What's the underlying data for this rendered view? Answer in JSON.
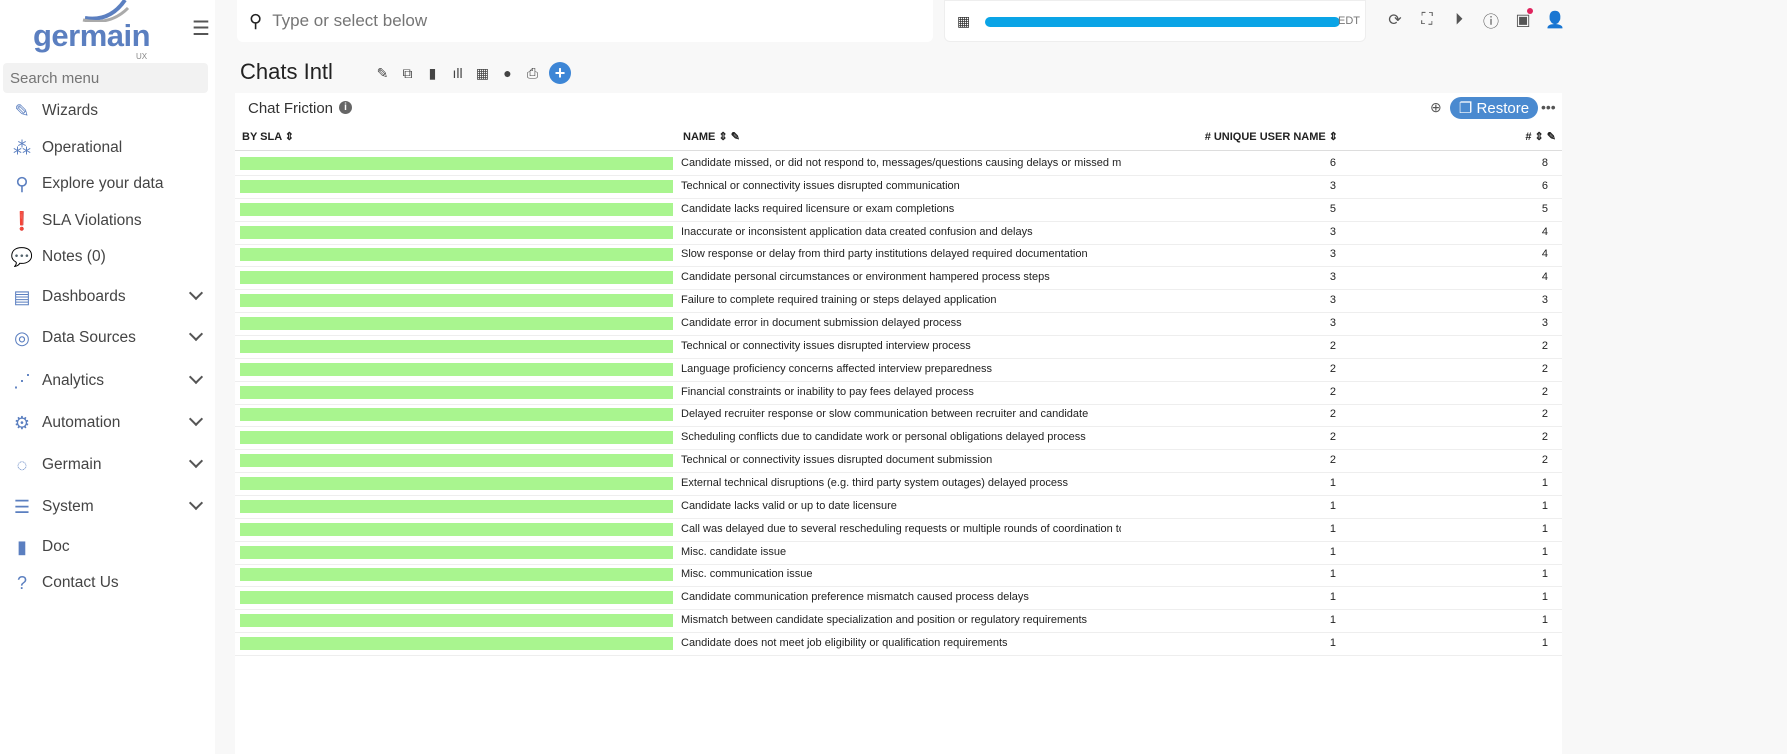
{
  "sidebar": {
    "logo": "germain",
    "logo_sub": "UX",
    "search_placeholder": "Search menu",
    "items": [
      {
        "label": "Wizards",
        "icon": "pencil-icon",
        "expandable": false
      },
      {
        "label": "Operational",
        "icon": "sitemap-icon",
        "expandable": false
      },
      {
        "label": "Explore your data",
        "icon": "search-icon",
        "expandable": false
      },
      {
        "label": "SLA Violations",
        "icon": "exclamation-icon",
        "expandable": false
      },
      {
        "label": "Notes (0)",
        "icon": "comment-icon",
        "expandable": false
      },
      {
        "label": "Dashboards",
        "icon": "dashboard-icon",
        "expandable": true
      },
      {
        "label": "Data Sources",
        "icon": "database-icon",
        "expandable": true
      },
      {
        "label": "Analytics",
        "icon": "analytics-icon",
        "expandable": true
      },
      {
        "label": "Automation",
        "icon": "gear-icon",
        "expandable": true
      },
      {
        "label": "Germain",
        "icon": "germain-icon",
        "expandable": true
      },
      {
        "label": "System",
        "icon": "sliders-icon",
        "expandable": true
      },
      {
        "label": "Doc",
        "icon": "book-icon",
        "expandable": false
      },
      {
        "label": "Contact Us",
        "icon": "question-icon",
        "expandable": false
      }
    ]
  },
  "topbar": {
    "search_placeholder": "Type or select below",
    "timezone": "EDT"
  },
  "page": {
    "title": "Chats Intl"
  },
  "panel": {
    "title": "Chat Friction",
    "restore_label": "Restore",
    "columns": [
      "BY SLA",
      "NAME",
      "# UNIQUE USER NAME",
      "#"
    ],
    "bar_color": "#a9f58f",
    "rows": [
      [
        "Candidate missed, or did not respond to, messages/questions causing delays or missed milestones",
        6,
        8
      ],
      [
        "Technical or connectivity issues disrupted communication",
        3,
        6
      ],
      [
        "Candidate lacks required licensure or exam completions",
        5,
        5
      ],
      [
        "Inaccurate or inconsistent application data created confusion and delays",
        3,
        4
      ],
      [
        "Slow response or delay from third party institutions delayed required documentation",
        3,
        4
      ],
      [
        "Candidate personal circumstances or environment hampered process steps",
        3,
        4
      ],
      [
        "Failure to complete required training or steps delayed application",
        3,
        3
      ],
      [
        "Candidate error in document submission delayed process",
        3,
        3
      ],
      [
        "Technical or connectivity issues disrupted interview process",
        2,
        2
      ],
      [
        "Language proficiency concerns affected interview preparedness",
        2,
        2
      ],
      [
        "Financial constraints or inability to pay fees delayed process",
        2,
        2
      ],
      [
        "Delayed recruiter response or slow communication between recruiter and candidate",
        2,
        2
      ],
      [
        "Scheduling conflicts due to candidate work or personal obligations delayed process",
        2,
        2
      ],
      [
        "Technical or connectivity issues disrupted document submission",
        2,
        2
      ],
      [
        "External technical disruptions (e.g. third party system outages) delayed process",
        1,
        1
      ],
      [
        "Candidate lacks valid or up to date licensure",
        1,
        1
      ],
      [
        "Call was delayed due to several rescheduling requests or multiple rounds of coordination to confirm",
        1,
        1
      ],
      [
        "Misc. candidate issue",
        1,
        1
      ],
      [
        "Misc. communication issue",
        1,
        1
      ],
      [
        "Candidate communication preference mismatch caused process delays",
        1,
        1
      ],
      [
        "Mismatch between candidate specialization and position or regulatory requirements",
        1,
        1
      ],
      [
        "Candidate does not meet job eligibility or qualification requirements",
        1,
        1
      ]
    ]
  }
}
